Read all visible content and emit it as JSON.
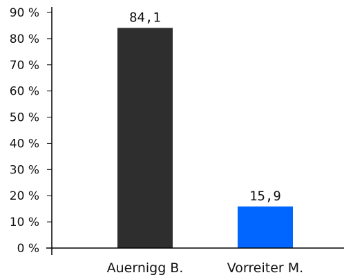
{
  "chart_data": {
    "type": "bar",
    "title": "",
    "xlabel": "",
    "ylabel": "",
    "categories": [
      "Auernigg B.",
      "Vorreiter M."
    ],
    "values": [
      84.1,
      15.9
    ],
    "value_labels": [
      "84,1",
      "15,9"
    ],
    "colors": [
      "#2e2e2e",
      "#0066ff"
    ],
    "ylim": [
      0,
      90
    ],
    "y_ticks": [
      0,
      10,
      20,
      30,
      40,
      50,
      60,
      70,
      80,
      90
    ],
    "y_tick_labels": [
      "0 %",
      "10 %",
      "20 %",
      "30 %",
      "40 %",
      "50 %",
      "60 %",
      "70 %",
      "80 %",
      "90 %"
    ],
    "grid": false,
    "legend": "none"
  }
}
